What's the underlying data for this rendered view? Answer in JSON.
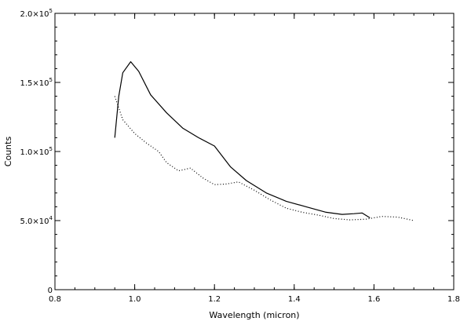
{
  "chart_data": {
    "type": "line",
    "title": "",
    "xlabel": "Wavelength (micron)",
    "ylabel": "Counts",
    "xlim": [
      0.8,
      1.8
    ],
    "ylim": [
      0,
      200000
    ],
    "grid": false,
    "x_ticks": [
      {
        "value": 0.8,
        "label": "0.8"
      },
      {
        "value": 1.0,
        "label": "1.0"
      },
      {
        "value": 1.2,
        "label": "1.2"
      },
      {
        "value": 1.4,
        "label": "1.4"
      },
      {
        "value": 1.6,
        "label": "1.6"
      },
      {
        "value": 1.8,
        "label": "1.8"
      }
    ],
    "y_ticks": [
      {
        "value": 0,
        "mantissa": "0",
        "exponent": ""
      },
      {
        "value": 50000,
        "mantissa": "5.0×10",
        "exponent": "4"
      },
      {
        "value": 100000,
        "mantissa": "1.0×10",
        "exponent": "5"
      },
      {
        "value": 150000,
        "mantissa": "1.5×10",
        "exponent": "5"
      },
      {
        "value": 200000,
        "mantissa": "2.0×10",
        "exponent": "5"
      }
    ],
    "series": [
      {
        "style": "solid",
        "color": "#000000",
        "points": [
          [
            0.95,
            110000
          ],
          [
            0.96,
            140000
          ],
          [
            0.97,
            157000
          ],
          [
            0.99,
            165000
          ],
          [
            1.01,
            158000
          ],
          [
            1.04,
            141000
          ],
          [
            1.08,
            128000
          ],
          [
            1.12,
            117000
          ],
          [
            1.16,
            110000
          ],
          [
            1.2,
            104000
          ],
          [
            1.24,
            89000
          ],
          [
            1.28,
            79000
          ],
          [
            1.33,
            70000
          ],
          [
            1.38,
            64000
          ],
          [
            1.43,
            60000
          ],
          [
            1.48,
            56000
          ],
          [
            1.52,
            54500
          ],
          [
            1.55,
            55000
          ],
          [
            1.57,
            55500
          ],
          [
            1.59,
            52000
          ]
        ]
      },
      {
        "style": "dotted",
        "color": "#000000",
        "points": [
          [
            0.95,
            140000
          ],
          [
            0.97,
            123000
          ],
          [
            1.0,
            113000
          ],
          [
            1.03,
            106000
          ],
          [
            1.06,
            100000
          ],
          [
            1.08,
            92000
          ],
          [
            1.11,
            86000
          ],
          [
            1.14,
            88000
          ],
          [
            1.17,
            81000
          ],
          [
            1.2,
            76000
          ],
          [
            1.23,
            76500
          ],
          [
            1.26,
            78000
          ],
          [
            1.3,
            72000
          ],
          [
            1.34,
            65000
          ],
          [
            1.38,
            59000
          ],
          [
            1.42,
            56000
          ],
          [
            1.46,
            54000
          ],
          [
            1.5,
            51500
          ],
          [
            1.54,
            50500
          ],
          [
            1.58,
            51000
          ],
          [
            1.62,
            53000
          ],
          [
            1.66,
            52500
          ],
          [
            1.7,
            50000
          ]
        ]
      }
    ]
  }
}
